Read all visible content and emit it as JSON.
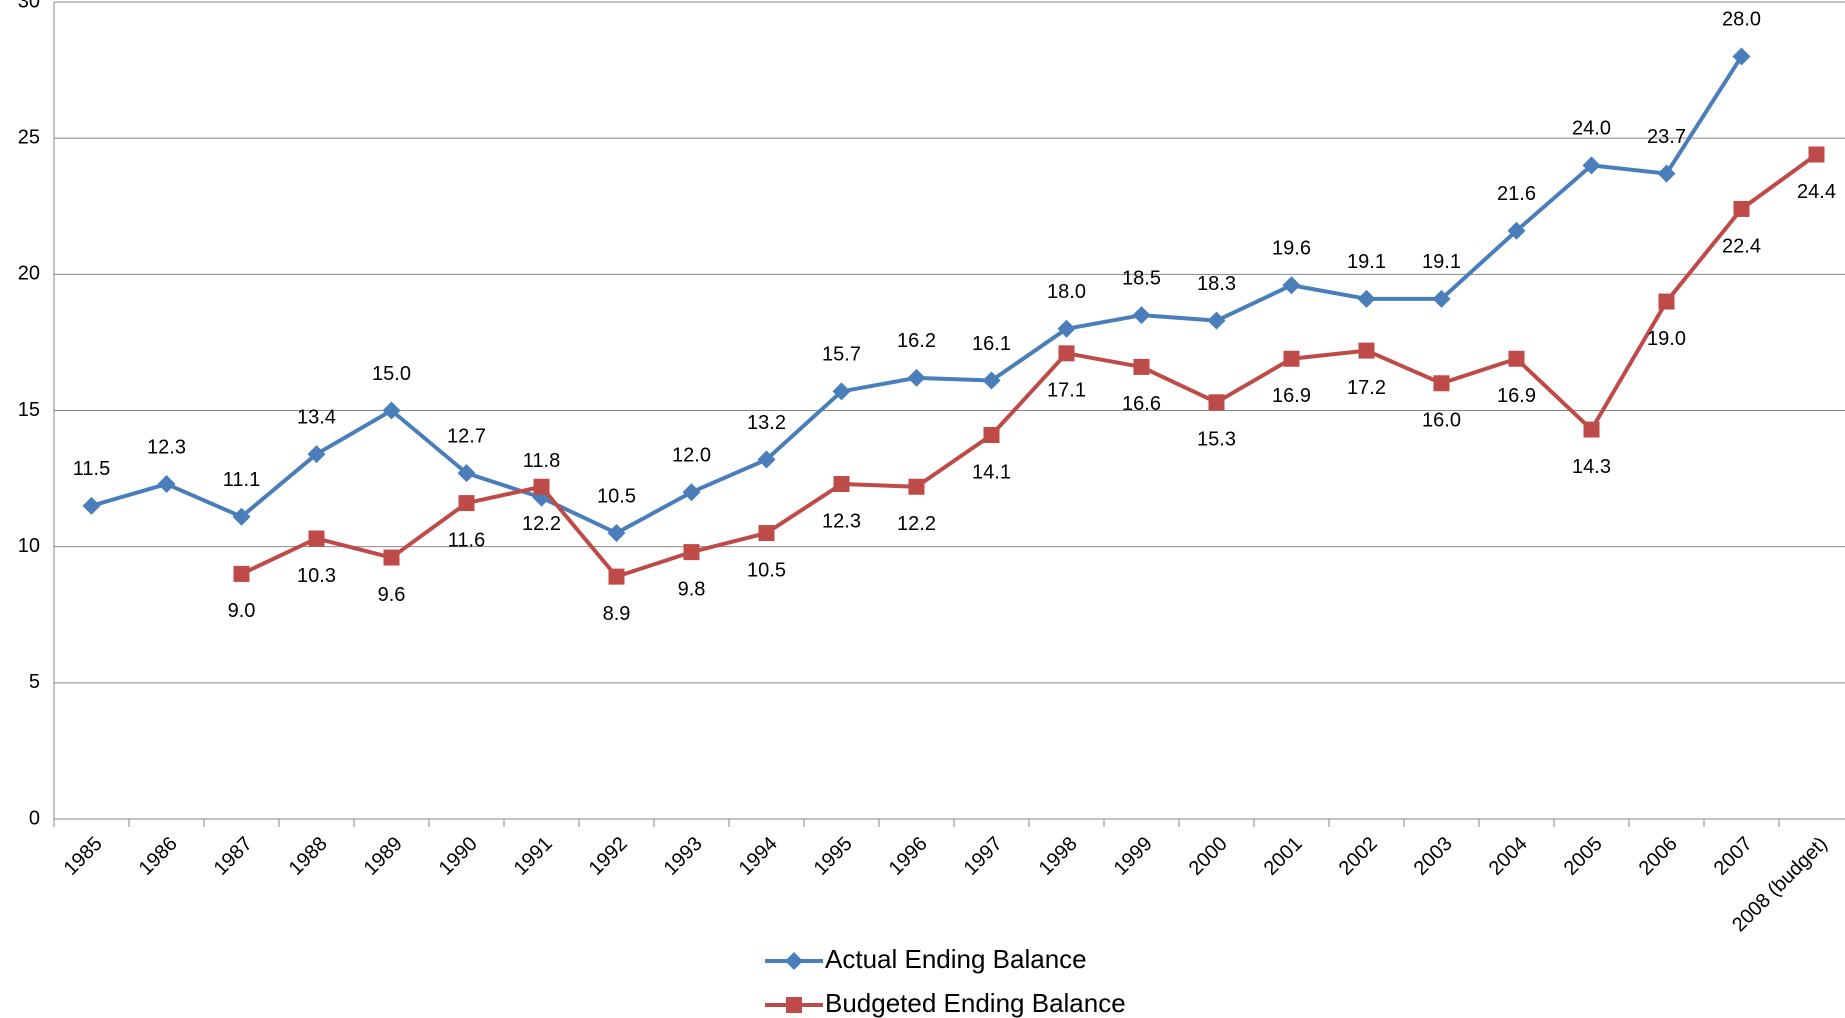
{
  "chart_data": {
    "type": "line",
    "categories": [
      "1985",
      "1986",
      "1987",
      "1988",
      "1989",
      "1990",
      "1991",
      "1992",
      "1993",
      "1994",
      "1995",
      "1996",
      "1997",
      "1998",
      "1999",
      "2000",
      "2001",
      "2002",
      "2003",
      "2004",
      "2005",
      "2006",
      "2007",
      "2008 (budget)"
    ],
    "series": [
      {
        "name": "Actual Ending Balance",
        "color": "#4a7ebb",
        "marker": "diamond",
        "values": [
          11.5,
          12.3,
          11.1,
          13.4,
          15.0,
          12.7,
          11.8,
          10.5,
          12.0,
          13.2,
          15.7,
          16.2,
          16.1,
          18.0,
          18.5,
          18.3,
          19.6,
          19.1,
          19.1,
          21.6,
          24.0,
          23.7,
          28.0,
          null
        ],
        "value_labels": [
          "11.5",
          "12.3",
          "11.1",
          "13.4",
          "15.0",
          "12.7",
          "11.8",
          "10.5",
          "12.0",
          "13.2",
          "15.7",
          "16.2",
          "16.1",
          "18.0",
          "18.5",
          "18.3",
          "19.6",
          "19.1",
          "19.1",
          "21.6",
          "24.0",
          "23.7",
          "28.0",
          null
        ]
      },
      {
        "name": "Budgeted Ending Balance",
        "color": "#be4b48",
        "marker": "square",
        "values": [
          null,
          null,
          9.0,
          10.3,
          9.6,
          11.6,
          12.2,
          8.9,
          9.8,
          10.5,
          12.3,
          12.2,
          14.1,
          17.1,
          16.6,
          15.3,
          16.9,
          17.2,
          16.0,
          16.9,
          14.3,
          19.0,
          22.4,
          24.4
        ],
        "value_labels": [
          null,
          null,
          "9.0",
          "10.3",
          "9.6",
          "11.6",
          "12.2",
          "8.9",
          "9.8",
          "10.5",
          "12.3",
          "12.2",
          "14.1",
          "17.1",
          "16.6",
          "15.3",
          "16.9",
          "17.2",
          "16.0",
          "16.9",
          "14.3",
          "19.0",
          "22.4",
          "24.4"
        ]
      }
    ],
    "ylim": [
      0,
      30
    ],
    "yticks": [
      0,
      5,
      10,
      15,
      20,
      25,
      30
    ],
    "grid": true,
    "legend": "bottom"
  }
}
